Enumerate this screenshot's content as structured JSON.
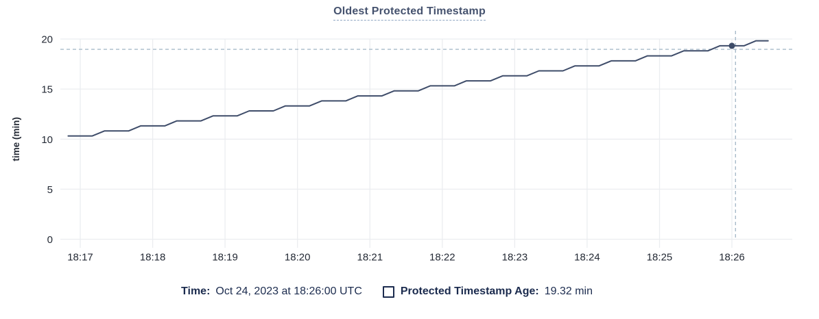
{
  "chart": {
    "title": "Oldest Protected Timestamp"
  },
  "legend": {
    "time_label": "Time:",
    "time_value": "Oct 24, 2023 at 18:26:00 UTC",
    "series_label": "Protected Timestamp Age:",
    "series_value": "19.32 min"
  },
  "chart_data": {
    "type": "line",
    "step_like": true,
    "title": "Oldest Protected Timestamp",
    "xlabel": "",
    "ylabel": "time (min)",
    "ylim": [
      0,
      20
    ],
    "yticks": [
      0,
      5,
      10,
      15,
      20
    ],
    "x_unit": "seconds after 18:17:00 UTC",
    "x_domain_sec": [
      -16.5,
      590
    ],
    "grid": true,
    "legend_position": "bottom",
    "xticks": [
      {
        "t": 0,
        "label": "18:17"
      },
      {
        "t": 60,
        "label": "18:18"
      },
      {
        "t": 120,
        "label": "18:19"
      },
      {
        "t": 180,
        "label": "18:20"
      },
      {
        "t": 240,
        "label": "18:21"
      },
      {
        "t": 300,
        "label": "18:22"
      },
      {
        "t": 360,
        "label": "18:23"
      },
      {
        "t": 420,
        "label": "18:24"
      },
      {
        "t": 480,
        "label": "18:25"
      },
      {
        "t": 540,
        "label": "18:26"
      }
    ],
    "series": [
      {
        "name": "Protected Timestamp Age",
        "unit": "min",
        "points": [
          [
            -10,
            10.32
          ],
          [
            0,
            10.32
          ],
          [
            10,
            10.32
          ],
          [
            20,
            10.82
          ],
          [
            30,
            10.82
          ],
          [
            40,
            10.82
          ],
          [
            50,
            11.32
          ],
          [
            60,
            11.32
          ],
          [
            70,
            11.32
          ],
          [
            80,
            11.82
          ],
          [
            90,
            11.82
          ],
          [
            100,
            11.82
          ],
          [
            110,
            12.32
          ],
          [
            120,
            12.32
          ],
          [
            130,
            12.32
          ],
          [
            140,
            12.82
          ],
          [
            150,
            12.82
          ],
          [
            160,
            12.82
          ],
          [
            170,
            13.32
          ],
          [
            180,
            13.32
          ],
          [
            190,
            13.32
          ],
          [
            200,
            13.82
          ],
          [
            210,
            13.82
          ],
          [
            220,
            13.82
          ],
          [
            230,
            14.32
          ],
          [
            240,
            14.32
          ],
          [
            250,
            14.32
          ],
          [
            260,
            14.82
          ],
          [
            270,
            14.82
          ],
          [
            280,
            14.82
          ],
          [
            290,
            15.32
          ],
          [
            300,
            15.32
          ],
          [
            310,
            15.32
          ],
          [
            320,
            15.82
          ],
          [
            330,
            15.82
          ],
          [
            340,
            15.82
          ],
          [
            350,
            16.32
          ],
          [
            360,
            16.32
          ],
          [
            370,
            16.32
          ],
          [
            380,
            16.82
          ],
          [
            390,
            16.82
          ],
          [
            400,
            16.82
          ],
          [
            410,
            17.32
          ],
          [
            420,
            17.32
          ],
          [
            430,
            17.32
          ],
          [
            440,
            17.82
          ],
          [
            450,
            17.82
          ],
          [
            460,
            17.82
          ],
          [
            470,
            18.32
          ],
          [
            480,
            18.32
          ],
          [
            490,
            18.32
          ],
          [
            500,
            18.82
          ],
          [
            510,
            18.82
          ],
          [
            520,
            18.82
          ],
          [
            530,
            19.32
          ],
          [
            540,
            19.32
          ],
          [
            550,
            19.32
          ],
          [
            560,
            19.82
          ],
          [
            570,
            19.82
          ]
        ]
      }
    ],
    "cursor": {
      "t_sec": 543,
      "value_at_cursor": 18.97,
      "point_t_sec": 540,
      "point_value": 19.32,
      "point_time_label": "Oct 24, 2023 at 18:26:00 UTC"
    },
    "colors": {
      "series": "#3e4c69",
      "grid": "#ebedf0",
      "crosshair": "#a7bac9",
      "axis_text": "#242a35",
      "title_text": "#45526e",
      "legend_text": "#1b2b4e"
    }
  }
}
